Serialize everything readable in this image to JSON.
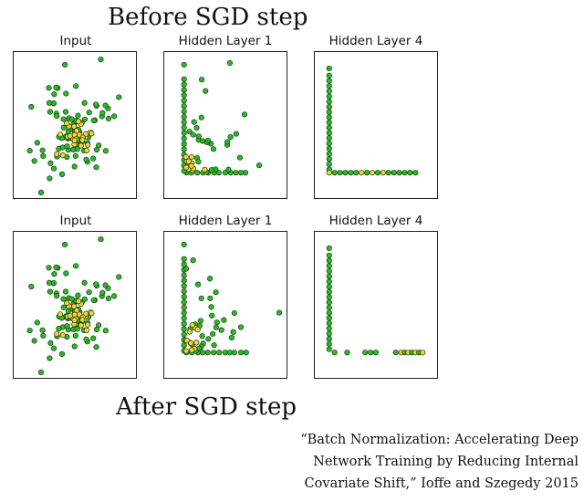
{
  "titles": {
    "top": "Before SGD step",
    "bottom": "After SGD step"
  },
  "rows": [
    {
      "panels": [
        {
          "label": "Input"
        },
        {
          "label": "Hidden Layer 1"
        },
        {
          "label": "Hidden Layer 4"
        }
      ]
    },
    {
      "panels": [
        {
          "label": "Input"
        },
        {
          "label": "Hidden Layer 1"
        },
        {
          "label": "Hidden Layer 4"
        }
      ]
    }
  ],
  "citation": [
    "“Batch Normalization: Accelerating Deep",
    "Network Training by Reducing Internal",
    "Covariate Shift,” Ioffe and Szegedy 2015"
  ],
  "colors": {
    "green_point": "#2db82d",
    "yellow_point": "#f2d43a",
    "point_stroke": "#1a3a10",
    "frame": "#222222"
  }
}
